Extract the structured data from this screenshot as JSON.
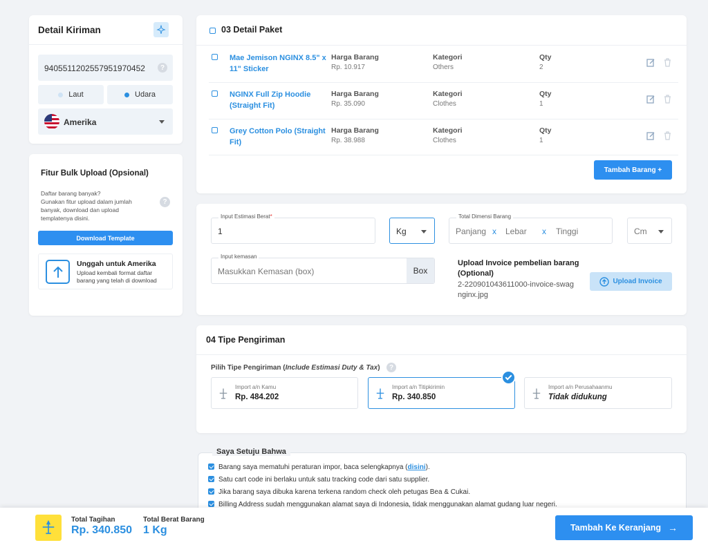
{
  "shipment": {
    "title": "Detail Kiriman",
    "tracking_code": "9405511202557951970452",
    "modes": [
      "Laut",
      "Udara"
    ],
    "country": "Amerika"
  },
  "bulk": {
    "title": "Fitur Bulk Upload (Opsional)",
    "desc": "Daftar barang banyak?\nGunakan fitur upload dalam jumlah banyak, download dan upload templatenya disini.",
    "download_label": "Download Template",
    "upload_title": "Unggah untuk Amerika",
    "upload_desc": "Upload kembali format daftar barang yang telah di download"
  },
  "package": {
    "title": "03 Detail Paket",
    "col_price": "Harga Barang",
    "col_category": "Kategori",
    "col_qty": "Qty",
    "items": [
      {
        "name": "Mae Jemison NGINX 8.5\" x 11\" Sticker",
        "price": "Rp. 10.917",
        "category": "Others",
        "qty": "2"
      },
      {
        "name": "NGINX Full Zip Hoodie (Straight Fit)",
        "price": "Rp. 35.090",
        "category": "Clothes",
        "qty": "1"
      },
      {
        "name": "Grey Cotton Polo (Straight Fit)",
        "price": "Rp. 38.988",
        "category": "Clothes",
        "qty": "1"
      }
    ],
    "add_label": "Tambah Barang +"
  },
  "weight": {
    "label": "Input Estimasi Berat",
    "required_mark": "*",
    "value": "1",
    "unit": "Kg",
    "dim_label": "Total Dimensi Barang",
    "length": "Panjang",
    "width": "Lebar",
    "height": "Tinggi",
    "times": "x",
    "dim_unit": "Cm",
    "pack_label": "Input kemasan",
    "pack_placeholder": "Masukkan Kemasan (box)",
    "pack_suffix": "Box",
    "invoice_title": "Upload Invoice pembelian barang (Optional)",
    "invoice_file": "2-220901043611000-invoice-swagnginx.jpg",
    "invoice_button": "Upload Invoice"
  },
  "shipping": {
    "title": "04 Tipe Pengiriman",
    "prompt": "Pilih Tipe Pengiriman (",
    "prompt_em": "Include Estimasi Duty & Tax",
    "prompt_end": ")",
    "options": [
      {
        "label": "Import a/n Kamu",
        "value": "Rp. 484.202"
      },
      {
        "label": "Import a/n Titipkirimin",
        "value": "Rp. 340.850"
      },
      {
        "label": "Import a/n Perusahaanmu",
        "value": "Tidak didukung"
      }
    ]
  },
  "agree": {
    "title": "Saya Setuju Bahwa",
    "items": [
      {
        "pre": "Barang saya mematuhi peraturan impor, baca selengkapnya (",
        "link": "disini",
        "post": ")."
      },
      {
        "pre": "Satu cart code ini berlaku untuk satu tracking code dari satu supplier.",
        "link": "",
        "post": ""
      },
      {
        "pre": "Jika barang saya dibuka karena terkena random check oleh petugas Bea & Cukai.",
        "link": "",
        "post": ""
      },
      {
        "pre": "Billing Address sudah menggunakan alamat saya di Indonesia, tidak menggunakan alamat gudang luar negeri.",
        "link": "",
        "post": ""
      }
    ]
  },
  "footer": {
    "total_label": "Total Tagihan",
    "total_value": "Rp. 340.850",
    "weight_label": "Total Berat Barang",
    "weight_value": "1 Kg",
    "cta": "Tambah Ke Keranjang"
  },
  "colors": {
    "accent": "#2d8ff0",
    "footer_icon_bg": "#ffe03a"
  }
}
